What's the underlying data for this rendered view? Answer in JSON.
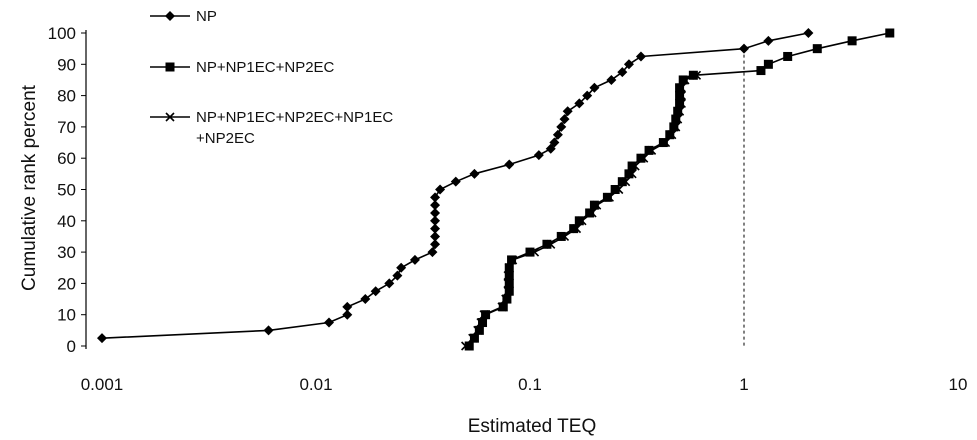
{
  "chart_data": {
    "type": "line",
    "title": "",
    "xlabel": "Estimated TEQ",
    "ylabel": "Cumulative rank percent",
    "x_scale": "log",
    "xlim": [
      0.001,
      10
    ],
    "ylim": [
      0,
      100
    ],
    "x_ticks": [
      "0.001",
      "0.01",
      "0.1",
      "1",
      "10"
    ],
    "y_ticks": [
      "0",
      "10",
      "20",
      "30",
      "40",
      "50",
      "60",
      "70",
      "80",
      "90",
      "100"
    ],
    "grid": false,
    "legend_position": "top-left",
    "reference_line": {
      "x": 1,
      "style": "dashed vertical"
    },
    "series": [
      {
        "name": "NP",
        "marker": "diamond",
        "color": "#000000",
        "points": [
          [
            0.001,
            2.5
          ],
          [
            0.006,
            5
          ],
          [
            0.0115,
            7.5
          ],
          [
            0.014,
            10
          ],
          [
            0.014,
            12.5
          ],
          [
            0.017,
            15
          ],
          [
            0.019,
            17.5
          ],
          [
            0.022,
            20
          ],
          [
            0.024,
            22.5
          ],
          [
            0.025,
            25
          ],
          [
            0.029,
            27.5
          ],
          [
            0.035,
            30
          ],
          [
            0.036,
            32.5
          ],
          [
            0.036,
            35
          ],
          [
            0.036,
            37.5
          ],
          [
            0.036,
            40
          ],
          [
            0.036,
            42.5
          ],
          [
            0.036,
            45
          ],
          [
            0.036,
            47.5
          ],
          [
            0.038,
            50
          ],
          [
            0.045,
            52.5
          ],
          [
            0.055,
            55
          ],
          [
            0.08,
            58
          ],
          [
            0.11,
            61
          ],
          [
            0.125,
            63
          ],
          [
            0.13,
            65
          ],
          [
            0.135,
            67.5
          ],
          [
            0.14,
            70
          ],
          [
            0.145,
            72.5
          ],
          [
            0.15,
            75
          ],
          [
            0.17,
            77.5
          ],
          [
            0.185,
            80
          ],
          [
            0.2,
            82.5
          ],
          [
            0.24,
            85
          ],
          [
            0.27,
            87.5
          ],
          [
            0.29,
            90
          ],
          [
            0.33,
            92.5
          ],
          [
            1.0,
            95
          ],
          [
            1.3,
            97.5
          ],
          [
            2.0,
            100
          ]
        ]
      },
      {
        "name": "NP+NP1EC+NP2EC",
        "marker": "square",
        "color": "#000000",
        "points": [
          [
            0.052,
            0
          ],
          [
            0.055,
            2.5
          ],
          [
            0.058,
            5
          ],
          [
            0.06,
            7.5
          ],
          [
            0.062,
            10
          ],
          [
            0.075,
            12.5
          ],
          [
            0.078,
            15
          ],
          [
            0.08,
            17.5
          ],
          [
            0.08,
            20
          ],
          [
            0.08,
            22.5
          ],
          [
            0.08,
            25
          ],
          [
            0.082,
            27.5
          ],
          [
            0.1,
            30
          ],
          [
            0.12,
            32.5
          ],
          [
            0.14,
            35
          ],
          [
            0.16,
            37.5
          ],
          [
            0.17,
            40
          ],
          [
            0.19,
            42.5
          ],
          [
            0.2,
            45
          ],
          [
            0.23,
            47.5
          ],
          [
            0.25,
            50
          ],
          [
            0.27,
            52.5
          ],
          [
            0.29,
            55
          ],
          [
            0.3,
            57.5
          ],
          [
            0.33,
            60
          ],
          [
            0.36,
            62.5
          ],
          [
            0.42,
            65
          ],
          [
            0.45,
            67.5
          ],
          [
            0.47,
            70
          ],
          [
            0.48,
            72.5
          ],
          [
            0.49,
            75
          ],
          [
            0.5,
            77.5
          ],
          [
            0.5,
            80
          ],
          [
            0.5,
            82.5
          ],
          [
            0.52,
            85
          ],
          [
            0.58,
            86.5
          ],
          [
            1.2,
            88
          ],
          [
            1.3,
            90
          ],
          [
            1.6,
            92.5
          ],
          [
            2.2,
            95
          ],
          [
            3.2,
            97.5
          ],
          [
            4.8,
            100
          ]
        ]
      },
      {
        "name": "NP+NP1EC+NP2EC+NP1EC +NP2EC",
        "marker": "x",
        "color": "#000000",
        "points": [
          [
            0.05,
            0
          ],
          [
            0.054,
            2.5
          ],
          [
            0.057,
            5
          ],
          [
            0.059,
            7.5
          ],
          [
            0.061,
            10
          ],
          [
            0.074,
            12.5
          ],
          [
            0.077,
            15
          ],
          [
            0.079,
            17.5
          ],
          [
            0.079,
            20
          ],
          [
            0.079,
            22.5
          ],
          [
            0.08,
            25
          ],
          [
            0.083,
            27.5
          ],
          [
            0.105,
            30
          ],
          [
            0.125,
            32.5
          ],
          [
            0.145,
            35
          ],
          [
            0.165,
            37.5
          ],
          [
            0.175,
            40
          ],
          [
            0.195,
            42.5
          ],
          [
            0.205,
            45
          ],
          [
            0.235,
            47.5
          ],
          [
            0.26,
            50
          ],
          [
            0.28,
            52.5
          ],
          [
            0.3,
            55
          ],
          [
            0.31,
            57.5
          ],
          [
            0.34,
            60
          ],
          [
            0.37,
            62.5
          ],
          [
            0.43,
            65
          ],
          [
            0.46,
            67.5
          ],
          [
            0.48,
            70
          ],
          [
            0.49,
            72.5
          ],
          [
            0.5,
            75
          ],
          [
            0.51,
            77.5
          ],
          [
            0.51,
            80
          ],
          [
            0.51,
            82.5
          ],
          [
            0.53,
            85
          ],
          [
            0.6,
            86.5
          ]
        ]
      }
    ]
  }
}
